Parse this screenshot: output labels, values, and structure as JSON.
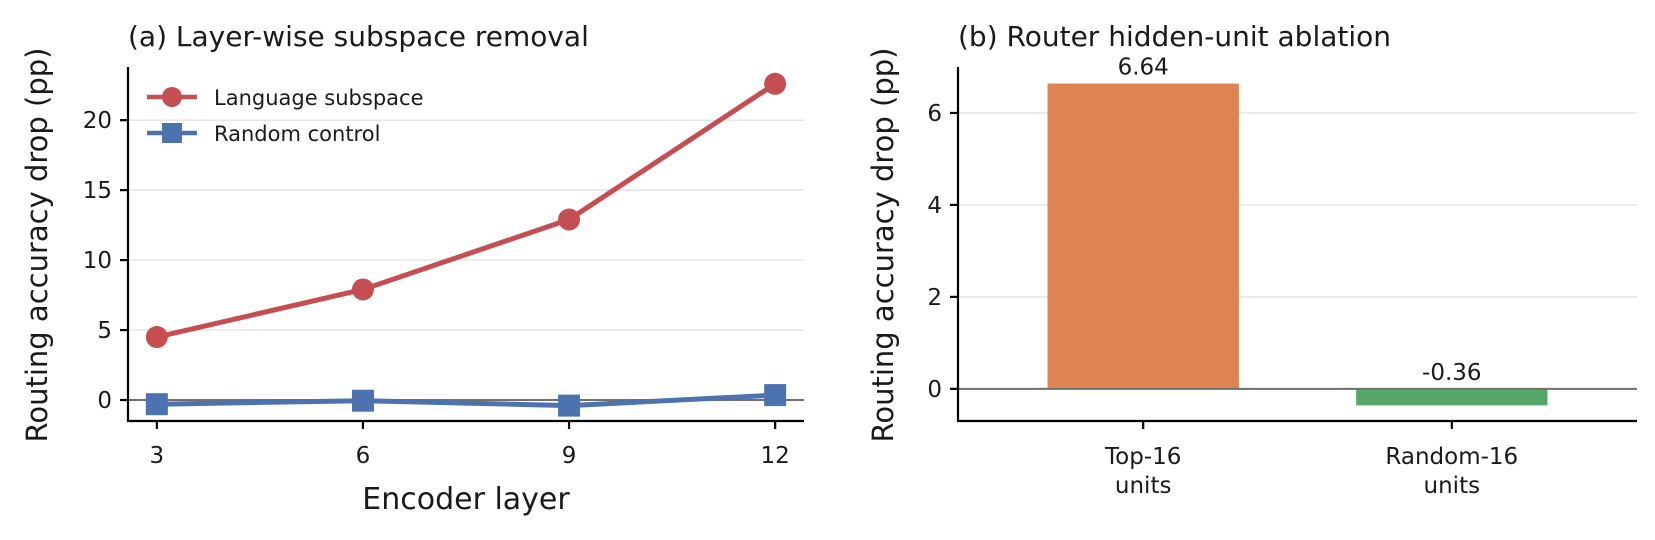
{
  "chart_data": [
    {
      "type": "line",
      "title": "(a) Layer-wise subspace removal",
      "xlabel": "Encoder layer",
      "ylabel": "Routing accuracy drop (pp)",
      "x": [
        3,
        6,
        9,
        12
      ],
      "xticks": [
        "3",
        "6",
        "9",
        "12"
      ],
      "yticks": [
        "0",
        "5",
        "10",
        "15",
        "20"
      ],
      "ylim": [
        -1.5,
        23.8
      ],
      "grid": "horizontal",
      "legend_position": "top-left",
      "series": [
        {
          "name": "Language subspace",
          "values": [
            4.5,
            7.9,
            12.9,
            22.6
          ],
          "color": "#c44e52",
          "marker": "circle"
        },
        {
          "name": "Random control",
          "values": [
            -0.3,
            -0.05,
            -0.4,
            0.35
          ],
          "color": "#4c72b0",
          "marker": "square"
        }
      ]
    },
    {
      "type": "bar",
      "title": "(b) Router hidden-unit ablation",
      "xlabel": "",
      "ylabel": "Routing accuracy drop (pp)",
      "categories": [
        "Top-16 units",
        "Random-16 units"
      ],
      "category_lines": [
        [
          "Top-16",
          "units"
        ],
        [
          "Random-16",
          "units"
        ]
      ],
      "values": [
        6.64,
        -0.36
      ],
      "value_labels": [
        "6.64",
        "-0.36"
      ],
      "colors": [
        "#dd8452",
        "#55a868"
      ],
      "yticks": [
        "0",
        "2",
        "4",
        "6"
      ],
      "ylim": [
        -0.7,
        7.0
      ],
      "grid": "horizontal"
    }
  ]
}
